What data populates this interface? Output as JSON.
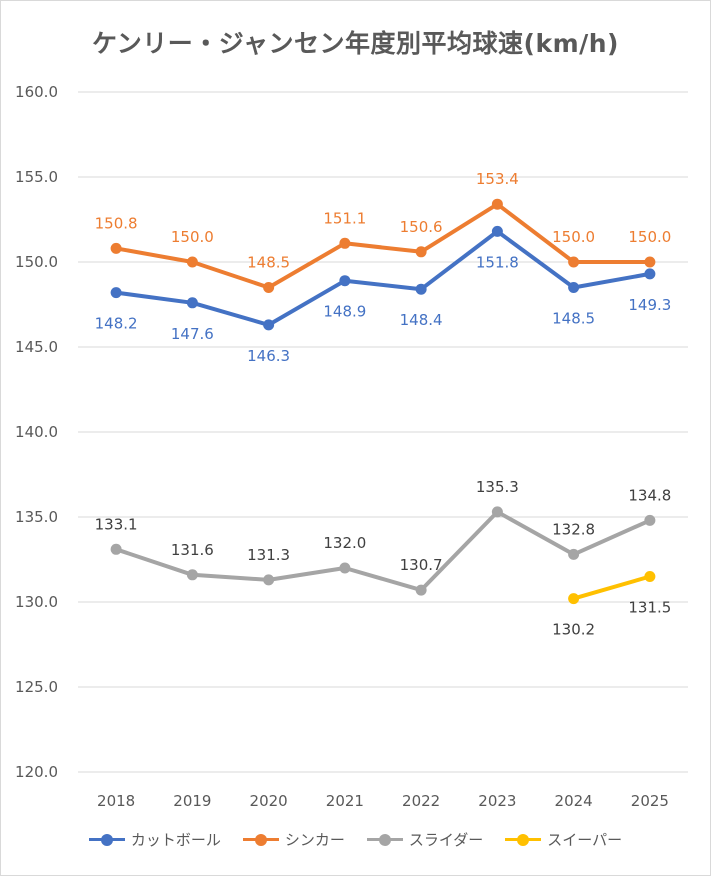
{
  "chart_data": {
    "type": "line",
    "title": "ケンリー・ジャンセン年度別平均球速(km/h)",
    "categories": [
      "2018",
      "2019",
      "2020",
      "2021",
      "2022",
      "2023",
      "2024",
      "2025"
    ],
    "ylim": [
      120.0,
      160.0
    ],
    "yticks": [
      "120.0",
      "125.0",
      "130.0",
      "135.0",
      "140.0",
      "145.0",
      "150.0",
      "155.0",
      "160.0"
    ],
    "grid": true,
    "legend_position": "bottom",
    "series": [
      {
        "name": "カットボール",
        "color": "#4472c4",
        "label_position": "below",
        "values": [
          148.2,
          147.6,
          146.3,
          148.9,
          148.4,
          151.8,
          148.5,
          149.3
        ],
        "labels": [
          "148.2",
          "147.6",
          "146.3",
          "148.9",
          "148.4",
          "151.8",
          "148.5",
          "149.3"
        ]
      },
      {
        "name": "シンカー",
        "color": "#ed7d31",
        "label_position": "above",
        "values": [
          150.8,
          150.0,
          148.5,
          151.1,
          150.6,
          153.4,
          150.0,
          150.0
        ],
        "labels": [
          "150.8",
          "150.0",
          "148.5",
          "151.1",
          "150.6",
          "153.4",
          "150.0",
          "150.0"
        ]
      },
      {
        "name": "スライダー",
        "color": "#a5a5a5",
        "label_position": "above",
        "values": [
          133.1,
          131.6,
          131.3,
          132.0,
          130.7,
          135.3,
          132.8,
          134.8
        ],
        "labels": [
          "133.1",
          "131.6",
          "131.3",
          "132.0",
          "130.7",
          "135.3",
          "132.8",
          "134.8"
        ]
      },
      {
        "name": "スイーパー",
        "color": "#ffc000",
        "label_position": "below",
        "values": [
          null,
          null,
          null,
          null,
          null,
          null,
          130.2,
          131.5
        ],
        "labels": [
          null,
          null,
          null,
          null,
          null,
          null,
          "130.2",
          "131.5"
        ]
      }
    ]
  }
}
